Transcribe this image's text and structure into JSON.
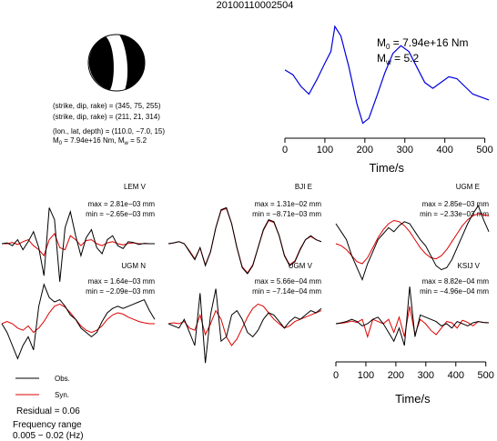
{
  "event_id": "20100110002504",
  "focal_mechanism": {
    "plane1": "(strike, dip, rake) = (345, 75, 255)",
    "plane2": "(strike, dip, rake) = (211, 21, 314)",
    "location": "(lon., lat, depth) = (110.0, −7.0, 15)",
    "m0_prefix": "M",
    "m0_sub": "0",
    "m0_value": " = 7.94e+16 Nm, M",
    "mw_sub": "w",
    "mw_value": " = 5.2"
  },
  "stf_annotation": {
    "m0_prefix": "M",
    "m0_sub": "0",
    "m0_value": " = 7.94e+16 Nm",
    "mw_prefix": "M",
    "mw_sub": "w",
    "mw_value": " = 5.2"
  },
  "legend": {
    "obs": "Obs.",
    "syn": "Syn."
  },
  "residual": "Residual = 0.06",
  "frequency_label": "Frequency range",
  "frequency_value": "0.005 − 0.02 (Hz)",
  "colors": {
    "obs": "#000000",
    "syn": "#dd0000",
    "stf": "#0000dd"
  },
  "chart_data": [
    {
      "type": "line",
      "name": "source time function",
      "xlabel": "Time/s",
      "xlim": [
        0,
        510
      ],
      "ylim": [
        -0.08,
        1.0
      ],
      "xticks": [
        0,
        100,
        200,
        300,
        400,
        500
      ],
      "x": [
        0,
        20,
        40,
        60,
        80,
        100,
        115,
        125,
        140,
        160,
        180,
        195,
        210,
        230,
        250,
        270,
        290,
        310,
        330,
        350,
        370,
        390,
        410,
        430,
        450,
        470,
        490,
        510
      ],
      "y": [
        0.55,
        0.5,
        0.38,
        0.3,
        0.45,
        0.62,
        0.74,
        1.0,
        0.9,
        0.58,
        0.2,
        0.0,
        0.05,
        0.28,
        0.52,
        0.72,
        0.8,
        0.74,
        0.58,
        0.42,
        0.36,
        0.42,
        0.48,
        0.46,
        0.38,
        0.3,
        0.27,
        0.24
      ]
    },
    {
      "type": "line",
      "station": "LEM V",
      "max": "max = 2.81e−03 mm",
      "min": "min = −2.65e−03 mm",
      "obs": [
        0,
        0.02,
        -0.05,
        0.1,
        -0.15,
        0.05,
        0.3,
        -0.1,
        -0.8,
        0.9,
        0.6,
        -0.95,
        0.4,
        0.8,
        0.2,
        -0.3,
        0.15,
        0.35,
        -0.1,
        -0.25,
        0.1,
        0.2,
        -0.05,
        -0.12,
        0.05,
        0.03,
        -0.02,
        0.01,
        0,
        0
      ],
      "syn": [
        0,
        0,
        0.03,
        -0.02,
        0.05,
        0.1,
        -0.05,
        -0.15,
        -0.3,
        0.1,
        0.25,
        -0.1,
        -0.15,
        0.2,
        0.1,
        -0.05,
        0.08,
        0.1,
        0,
        -0.05,
        0.02,
        0.05,
        0,
        -0.03,
        0.01,
        0.02,
        0,
        0,
        0,
        0
      ]
    },
    {
      "type": "line",
      "station": "BJI E",
      "max": "max = 1.31e−02 mm",
      "min": "min = −8.71e−03 mm",
      "obs": [
        0,
        0.02,
        0.05,
        0.0,
        -0.2,
        -0.4,
        -0.1,
        -0.55,
        -0.2,
        0.4,
        0.85,
        0.9,
        0.5,
        -0.1,
        -0.6,
        -0.75,
        -0.55,
        -0.1,
        0.35,
        0.6,
        0.55,
        0.2,
        -0.3,
        -0.55,
        -0.45,
        -0.15,
        0.1,
        0.2,
        0.1,
        0.05
      ],
      "syn": [
        0,
        0.02,
        0.05,
        0.0,
        -0.18,
        -0.38,
        -0.1,
        -0.53,
        -0.2,
        0.4,
        0.83,
        0.88,
        0.5,
        -0.1,
        -0.58,
        -0.73,
        -0.53,
        -0.1,
        0.33,
        0.58,
        0.53,
        0.2,
        -0.28,
        -0.53,
        -0.43,
        -0.13,
        0.1,
        0.18,
        0.1,
        0.05
      ]
    },
    {
      "type": "line",
      "station": "UGM E",
      "max": "max = 2.85e−03 mm",
      "min": "min = −2.33e−03 mm",
      "obs": [
        0.5,
        0.3,
        0.1,
        -0.3,
        -0.6,
        -0.9,
        -0.5,
        -0.2,
        0.1,
        0.25,
        0.4,
        0.3,
        0.45,
        0.55,
        0.5,
        0.3,
        0.1,
        -0.05,
        -0.3,
        -0.55,
        -0.65,
        -0.6,
        -0.4,
        -0.1,
        0.2,
        0.5,
        0.75,
        0.95,
        0.6,
        0.3
      ],
      "syn": [
        0,
        -0.05,
        -0.15,
        -0.3,
        -0.45,
        -0.5,
        -0.35,
        -0.1,
        0.15,
        0.35,
        0.5,
        0.58,
        0.55,
        0.45,
        0.3,
        0.1,
        -0.1,
        -0.25,
        -0.35,
        -0.38,
        -0.3,
        -0.15,
        0.05,
        0.25,
        0.45,
        0.6,
        0.7,
        0.75,
        0.72,
        0.7
      ]
    },
    {
      "type": "line",
      "station": "UGM N",
      "max": "max = 1.64e−03 mm",
      "min": "min = −2.09e−03 mm",
      "obs": [
        0,
        -0.2,
        -0.5,
        -0.8,
        -0.5,
        -0.3,
        -0.6,
        0.4,
        0.9,
        0.6,
        0.5,
        0.55,
        0.4,
        0.2,
        0.1,
        -0.1,
        -0.2,
        -0.3,
        -0.2,
        0.05,
        0.25,
        0.35,
        0.4,
        0.35,
        0.4,
        0.45,
        0.5,
        0.55,
        0.3,
        0.1
      ],
      "syn": [
        0,
        0.05,
        0.0,
        -0.1,
        -0.15,
        -0.05,
        -0.2,
        -0.1,
        0.05,
        0.25,
        0.4,
        0.45,
        0.38,
        0.25,
        0.1,
        -0.05,
        -0.15,
        -0.2,
        -0.15,
        -0.05,
        0.1,
        0.2,
        0.25,
        0.22,
        0.15,
        0.1,
        0.05,
        0.02,
        0.0,
        0.0
      ]
    },
    {
      "type": "line",
      "station": "UGM V",
      "max": "max = 5.66e−04 mm",
      "min": "min = −7.14e−04 mm",
      "obs": [
        0,
        -0.05,
        -0.1,
        0.1,
        -0.2,
        -0.5,
        0.7,
        -0.9,
        0.2,
        0.8,
        -0.4,
        -0.3,
        0.2,
        0.3,
        0.1,
        -0.2,
        -0.3,
        -0.15,
        0.1,
        0.25,
        0.2,
        0.05,
        -0.1,
        0.05,
        0.15,
        0.1,
        0.2,
        0.3,
        0.25,
        0.35
      ],
      "syn": [
        0,
        0.02,
        0.0,
        0.05,
        -0.1,
        -0.15,
        0.2,
        -0.25,
        0.0,
        0.3,
        0.1,
        -0.3,
        -0.5,
        -0.35,
        -0.1,
        0.15,
        0.35,
        0.45,
        0.4,
        0.25,
        0.1,
        0.0,
        -0.1,
        -0.05,
        0.05,
        0.1,
        0.15,
        0.2,
        0.25,
        0.3
      ]
    },
    {
      "type": "line",
      "station": "KSIJ V",
      "max": "max = 8.82e−04 mm",
      "min": "min = −4.96e−04 mm",
      "obs": [
        0,
        0.02,
        0.05,
        0.1,
        0.05,
        -0.05,
        0.0,
        0.1,
        0.15,
        0.0,
        -0.2,
        -0.4,
        -0.1,
        -0.5,
        0.85,
        -0.3,
        0.2,
        0.15,
        0.1,
        0.05,
        -0.05,
        0.0,
        -0.1,
        0.05,
        0.0,
        -0.05,
        0.02,
        0.05,
        0.03,
        0.02
      ],
      "syn": [
        0,
        0.01,
        0.03,
        0.06,
        0.03,
        0.1,
        -0.3,
        0.1,
        0.05,
        0.0,
        0.1,
        -0.2,
        0.15,
        -0.3,
        0.4,
        -0.25,
        0.1,
        0.0,
        -0.15,
        -0.25,
        -0.1,
        0.05,
        0.02,
        -0.1,
        0.08,
        0.03,
        -0.05,
        0.05,
        0.03,
        0.02
      ]
    },
    {
      "type": "line",
      "name": "waveform time axis",
      "xlabel": "Time/s",
      "xlim": [
        0,
        510
      ],
      "xticks": [
        0,
        100,
        200,
        300,
        400,
        500
      ]
    }
  ]
}
